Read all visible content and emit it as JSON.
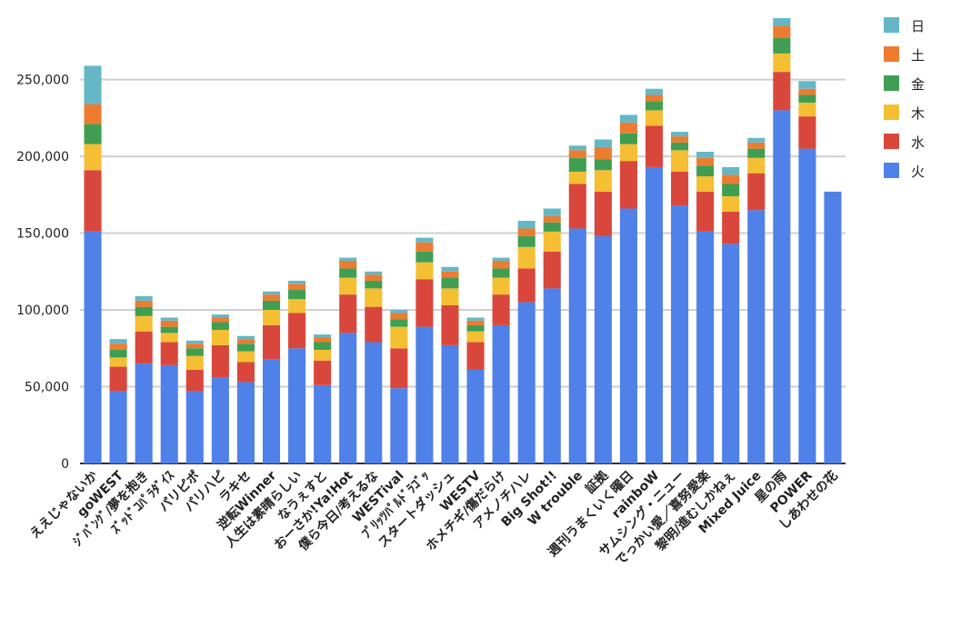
{
  "chart_data": {
    "type": "bar",
    "stacked": true,
    "title": "",
    "xlabel": "",
    "ylabel": "",
    "ylim": [
      0,
      290000
    ],
    "yticks": [
      0,
      50000,
      100000,
      150000,
      200000,
      250000
    ],
    "ytick_labels": [
      "0",
      "50,000",
      "100,000",
      "150,000",
      "200,000",
      "250,000"
    ],
    "grid": true,
    "legend_position": "right",
    "categories": [
      "ええじゃないか",
      "goWEST",
      "ｼﾞﾊﾟﾝｸﾞ/夢を抱き",
      "ｽﾞｯﾄﾞｺﾊﾟﾗﾀﾞｲｽ",
      "パリピポ",
      "パリハピ",
      "ラキセ",
      "逆転Winner",
      "人生は素晴らしい",
      "なうぇすと",
      "おーさか!Ya!Hot",
      "僕ら今日/考えるな",
      "WESTival",
      "ﾌﾟﾘｯﾂﾊﾟﾙﾄﾞﾗｺﾞｯ",
      "スタートダッシュ",
      "WESTV",
      "ホメチギ/傷だらけ",
      "アメノチハレ",
      "Big Shot!!",
      "W trouble",
      "証拠",
      "週刊うまくいく曜日",
      "rainboW",
      "サムシング・ニュー",
      "でっかい愛／喜努愛楽",
      "黎明/進むしかねぇ",
      "Mixed Juice",
      "星の雨",
      "POWER",
      "しあわせの花"
    ],
    "series": [
      {
        "name": "火",
        "color": "#4f81e8",
        "values": [
          151000,
          47000,
          65000,
          64000,
          47000,
          56000,
          53000,
          68000,
          75000,
          51000,
          85000,
          79000,
          49000,
          89000,
          77000,
          61000,
          90000,
          105000,
          114000,
          153000,
          148000,
          166000,
          193000,
          168000,
          151000,
          143000,
          165000,
          230000,
          205000,
          177000
        ]
      },
      {
        "name": "水",
        "color": "#d9473c",
        "values": [
          40000,
          16000,
          21000,
          15000,
          14000,
          21000,
          13000,
          22000,
          23000,
          16000,
          25000,
          23000,
          26000,
          31000,
          26000,
          18000,
          20000,
          22000,
          24000,
          29000,
          29000,
          31000,
          27000,
          22000,
          26000,
          21000,
          24000,
          25000,
          21000,
          0
        ]
      },
      {
        "name": "木",
        "color": "#f4bf32",
        "values": [
          17000,
          6000,
          10000,
          6000,
          9000,
          10000,
          7000,
          10000,
          9000,
          7000,
          11000,
          12000,
          14000,
          11000,
          11000,
          7000,
          11000,
          14000,
          13000,
          8000,
          14000,
          11000,
          10000,
          14000,
          10000,
          10000,
          10000,
          12000,
          9000,
          0
        ]
      },
      {
        "name": "金",
        "color": "#3f9e52",
        "values": [
          13000,
          5000,
          6000,
          4000,
          5000,
          5000,
          5000,
          6000,
          6000,
          5000,
          6000,
          5000,
          5000,
          7000,
          7000,
          4000,
          6000,
          7000,
          6000,
          9000,
          7000,
          7000,
          6000,
          5000,
          7000,
          8000,
          6000,
          10000,
          5000,
          0
        ]
      },
      {
        "name": "土",
        "color": "#ec7c30",
        "values": [
          13000,
          4000,
          4000,
          4000,
          3000,
          3000,
          3000,
          4000,
          4000,
          3000,
          5000,
          4000,
          4000,
          6000,
          4000,
          3000,
          5000,
          5000,
          4000,
          5000,
          8000,
          7000,
          4000,
          4000,
          5000,
          6000,
          4000,
          8000,
          4000,
          0
        ]
      },
      {
        "name": "日",
        "color": "#65b7c6",
        "values": [
          25000,
          3000,
          3000,
          2000,
          2000,
          2000,
          2000,
          2000,
          2000,
          2000,
          2000,
          2000,
          2000,
          3000,
          3000,
          2000,
          2000,
          5000,
          5000,
          3000,
          5000,
          5000,
          4000,
          3000,
          4000,
          5000,
          3000,
          5000,
          5000,
          0
        ]
      }
    ]
  }
}
